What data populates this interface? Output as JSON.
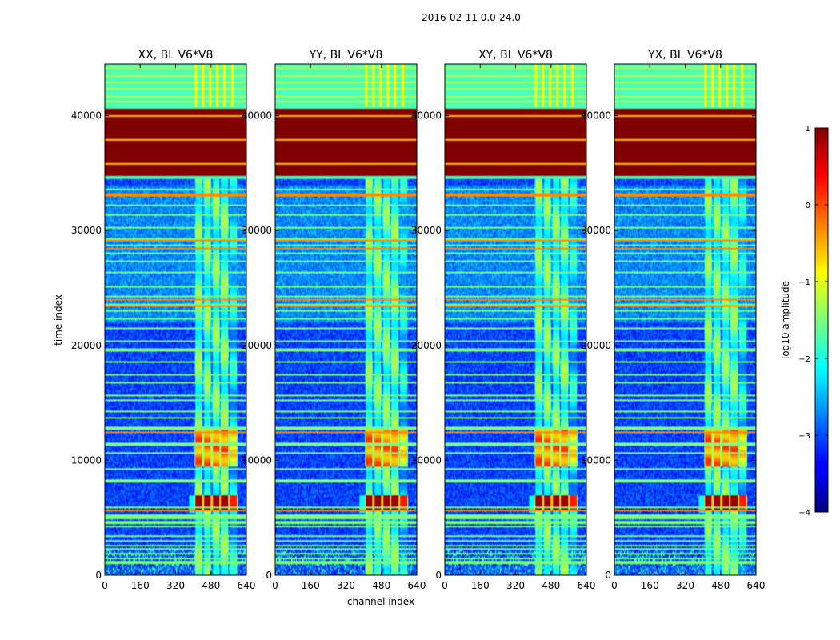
{
  "chart_data": {
    "type": "heatmap",
    "suptitle": "2016-02-11 0.0-24.0",
    "xlabel": "channel index",
    "ylabel": "time index",
    "xlim": [
      0,
      640
    ],
    "ylim": [
      0,
      44500
    ],
    "xticks": [
      0,
      160,
      320,
      480,
      640
    ],
    "yticks": [
      0,
      10000,
      20000,
      30000,
      40000
    ],
    "panels": [
      {
        "title": "XX, BL V6*V8",
        "variant": 0
      },
      {
        "title": "YY, BL V6*V8",
        "variant": 1
      },
      {
        "title": "XY, BL V6*V8",
        "variant": 2
      },
      {
        "title": "YX, BL V6*V8",
        "variant": 3
      }
    ],
    "colorbar": {
      "label": "log10 amplitude",
      "range": [
        -4,
        1
      ],
      "ticks": [
        1,
        0,
        -1,
        -2,
        -3,
        -4
      ],
      "tick_labels": [
        "1",
        "0",
        "−1",
        "−2",
        "−3",
        "−4"
      ],
      "colormap": "jet"
    },
    "features": {
      "saturated_block": [
        34800,
        40800
      ],
      "flagged_band_top": [
        40800,
        44500
      ],
      "band_active_channels": [
        405,
        600
      ],
      "bright_period": [
        5600,
        7000
      ],
      "colorbar_low_label": "......"
    }
  },
  "colors": {
    "background": "#000080",
    "saturated": "#800000",
    "flagged": "#98f866"
  }
}
